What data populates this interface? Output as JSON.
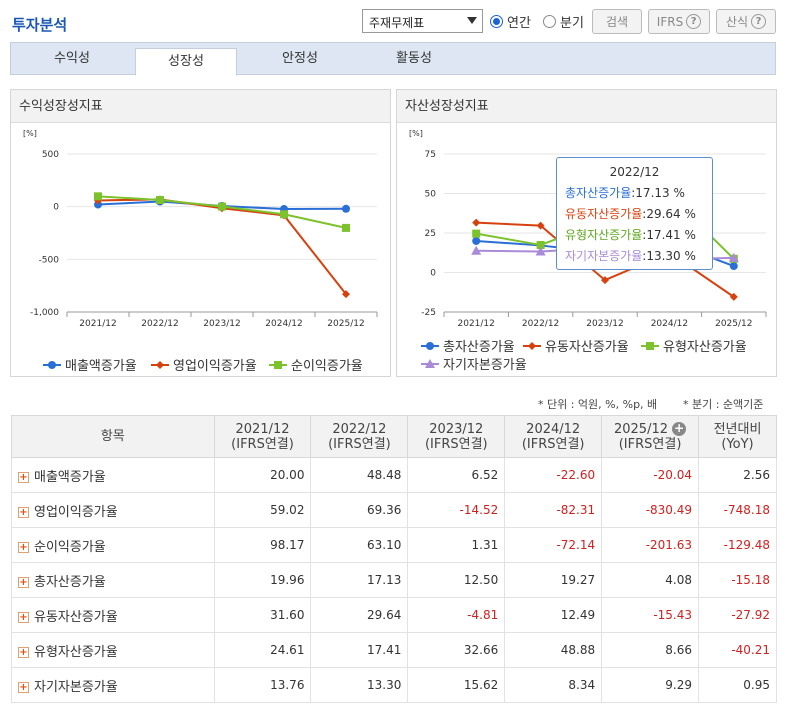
{
  "header": {
    "title": "투자분석",
    "select_value": "주재무제표",
    "radio_annual": "연간",
    "radio_quarter": "분기",
    "search_label": "검색",
    "ifrs_label": "IFRS",
    "formula_label": "산식"
  },
  "tabs": [
    {
      "label": "수익성",
      "active": false
    },
    {
      "label": "성장성",
      "active": true
    },
    {
      "label": "안정성",
      "active": false
    },
    {
      "label": "활동성",
      "active": false
    }
  ],
  "colors": {
    "blue": "#2a6fd6",
    "red": "#d6420f",
    "green": "#7cc22c",
    "purple": "#a98bd8"
  },
  "left_chart": {
    "title": "수익성장성지표",
    "chart_data": {
      "type": "line",
      "unit": "[%]",
      "categories": [
        "2021/12",
        "2022/12",
        "2023/12",
        "2024/12",
        "2025/12"
      ],
      "yticks": [
        "500",
        "0",
        "-500",
        "-1,000"
      ],
      "ylim": [
        -1000,
        500
      ],
      "series": [
        {
          "name": "매출액증가율",
          "color": "#2a6fd6",
          "marker": "circle",
          "values": [
            20.0,
            48.48,
            6.52,
            -22.6,
            -20.04
          ]
        },
        {
          "name": "영업이익증가율",
          "color": "#d6420f",
          "marker": "diamond",
          "values": [
            59.02,
            69.36,
            -14.52,
            -82.31,
            -830.49
          ]
        },
        {
          "name": "순이익증가율",
          "color": "#7cc22c",
          "marker": "square",
          "values": [
            98.17,
            63.1,
            1.31,
            -72.14,
            -201.63
          ]
        }
      ]
    }
  },
  "right_chart": {
    "title": "자산성장성지표",
    "chart_data": {
      "type": "line",
      "unit": "[%]",
      "categories": [
        "2021/12",
        "2022/12",
        "2023/12",
        "2024/12",
        "2025/12"
      ],
      "yticks": [
        "75",
        "50",
        "25",
        "0",
        "-25"
      ],
      "ylim": [
        -25,
        75
      ],
      "series": [
        {
          "name": "총자산증가율",
          "color": "#2a6fd6",
          "marker": "circle",
          "values": [
            19.96,
            17.13,
            12.5,
            19.27,
            4.08
          ]
        },
        {
          "name": "유동자산증가율",
          "color": "#d6420f",
          "marker": "diamond",
          "values": [
            31.6,
            29.64,
            -4.81,
            12.49,
            -15.43
          ]
        },
        {
          "name": "유형자산증가율",
          "color": "#7cc22c",
          "marker": "square",
          "values": [
            24.61,
            17.41,
            32.66,
            48.88,
            8.66
          ]
        },
        {
          "name": "자기자본증가율",
          "color": "#a98bd8",
          "marker": "triangle",
          "values": [
            13.76,
            13.3,
            15.62,
            8.34,
            9.29
          ]
        }
      ]
    },
    "tooltip": {
      "header": "2022/12",
      "rows": [
        {
          "label": "총자산증가율",
          "value": ":17.13 %",
          "color": "#2a6fd6"
        },
        {
          "label": "유동자산증가율",
          "value": ":29.64 %",
          "color": "#d6420f"
        },
        {
          "label": "유형자산증가율",
          "value": ":17.41 %",
          "color": "#7cc22c"
        },
        {
          "label": "자기자본증가율",
          "value": ":13.30 %",
          "color": "#a98bd8"
        }
      ]
    }
  },
  "notes": {
    "unit": "* 단위 : 억원, %, %p, 배",
    "quarter": "* 분기 : 순액기준"
  },
  "table": {
    "headers": [
      {
        "line1": "항목",
        "line2": ""
      },
      {
        "line1": "2021/12",
        "line2": "(IFRS연결)"
      },
      {
        "line1": "2022/12",
        "line2": "(IFRS연결)"
      },
      {
        "line1": "2023/12",
        "line2": "(IFRS연결)"
      },
      {
        "line1": "2024/12",
        "line2": "(IFRS연결)"
      },
      {
        "line1": "2025/12",
        "line2": "(IFRS연결)"
      },
      {
        "line1": "전년대비",
        "line2": "(YoY)"
      }
    ],
    "rows": [
      {
        "name": "매출액증가율",
        "cells": [
          "20.00",
          "48.48",
          "6.52",
          "-22.60",
          "-20.04",
          "2.56"
        ]
      },
      {
        "name": "영업이익증가율",
        "cells": [
          "59.02",
          "69.36",
          "-14.52",
          "-82.31",
          "-830.49",
          "-748.18"
        ]
      },
      {
        "name": "순이익증가율",
        "cells": [
          "98.17",
          "63.10",
          "1.31",
          "-72.14",
          "-201.63",
          "-129.48"
        ]
      },
      {
        "name": "총자산증가율",
        "cells": [
          "19.96",
          "17.13",
          "12.50",
          "19.27",
          "4.08",
          "-15.18"
        ]
      },
      {
        "name": "유동자산증가율",
        "cells": [
          "31.60",
          "29.64",
          "-4.81",
          "12.49",
          "-15.43",
          "-27.92"
        ]
      },
      {
        "name": "유형자산증가율",
        "cells": [
          "24.61",
          "17.41",
          "32.66",
          "48.88",
          "8.66",
          "-40.21"
        ]
      },
      {
        "name": "자기자본증가율",
        "cells": [
          "13.76",
          "13.30",
          "15.62",
          "8.34",
          "9.29",
          "0.95"
        ]
      }
    ]
  }
}
